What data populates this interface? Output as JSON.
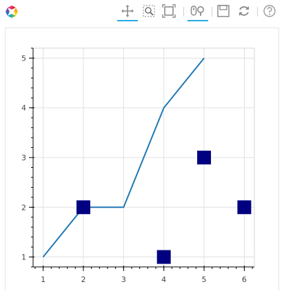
{
  "toolbar": {
    "logo_icon": "bokeh-logo-icon",
    "tools": [
      {
        "name": "pan-tool",
        "icon": "pan-icon",
        "active": true
      },
      {
        "name": "box-zoom-tool",
        "icon": "box-zoom-icon",
        "active": false
      },
      {
        "name": "zoom-in-tool",
        "icon": "zoom-in-icon",
        "active": false
      },
      {
        "name": "wheel-zoom-tool",
        "icon": "wheel-zoom-icon",
        "active": true
      },
      {
        "name": "save-tool",
        "icon": "save-icon",
        "active": false
      },
      {
        "name": "reset-tool",
        "icon": "reset-icon",
        "active": false
      },
      {
        "name": "help-tool",
        "icon": "help-icon",
        "active": false
      }
    ],
    "accent_color": "#26aae1"
  },
  "chart_data": {
    "type": "line",
    "title": "",
    "xlabel": "",
    "ylabel": "",
    "xlim": [
      0.75,
      6.25
    ],
    "ylim": [
      0.8,
      5.2
    ],
    "x_ticks": [
      1,
      2,
      3,
      4,
      5,
      6
    ],
    "y_ticks": [
      1,
      2,
      3,
      4,
      5
    ],
    "grid": true,
    "series": [
      {
        "type": "line",
        "color": "#1f77b4",
        "x": [
          1,
          2,
          3,
          4,
          5
        ],
        "y": [
          1,
          2,
          2,
          4,
          5
        ]
      },
      {
        "type": "scatter",
        "marker": "square",
        "color": "#000080",
        "x": [
          2,
          4,
          5,
          6
        ],
        "y": [
          2,
          1,
          3,
          2
        ]
      }
    ]
  }
}
